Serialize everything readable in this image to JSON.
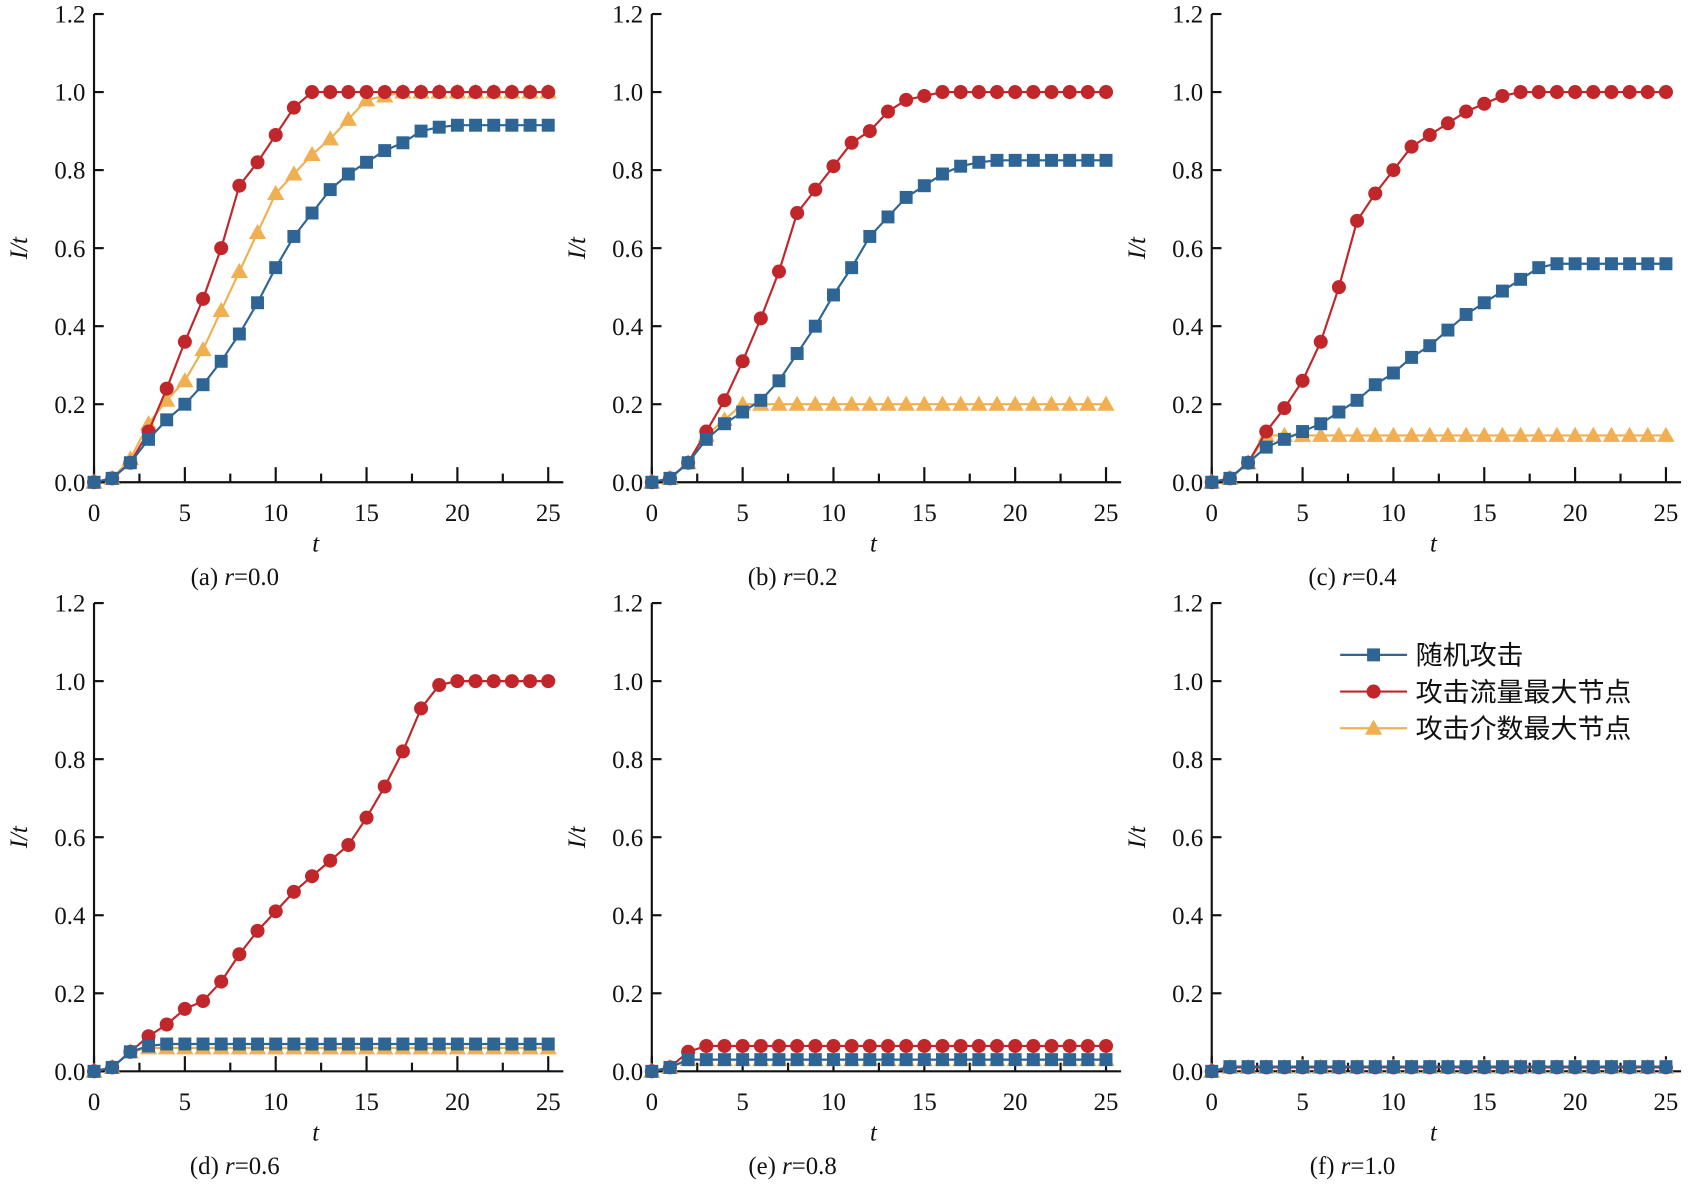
{
  "chart_data": {
    "type": "line",
    "xlabel": "t",
    "ylabel": "I/t",
    "xlim": [
      0,
      25
    ],
    "ylim": [
      0,
      1.2
    ],
    "xticks": [
      "0",
      "5",
      "10",
      "15",
      "20",
      "25"
    ],
    "yticks": [
      "0.0",
      "0.2",
      "0.4",
      "0.6",
      "0.8",
      "1.0",
      "1.2"
    ],
    "legend": {
      "placement": "top-right of panel f",
      "entries": [
        "随机攻击",
        "攻击流量最大节点",
        "攻击介数最大节点"
      ]
    },
    "colors": {
      "random": "#2e6595",
      "flow": "#c0262a",
      "betweenness": "#f0b052"
    },
    "x": [
      0,
      1,
      2,
      3,
      4,
      5,
      6,
      7,
      8,
      9,
      10,
      11,
      12,
      13,
      14,
      15,
      16,
      17,
      18,
      19,
      20,
      21,
      22,
      23,
      24,
      25
    ],
    "panels": [
      {
        "caption_prefix": "(a) ",
        "caption_r": "r",
        "caption_val": "=0.0",
        "series": [
          {
            "name": "随机攻击",
            "values": [
              0,
              0.01,
              0.05,
              0.11,
              0.16,
              0.2,
              0.25,
              0.31,
              0.38,
              0.46,
              0.55,
              0.63,
              0.69,
              0.75,
              0.79,
              0.82,
              0.85,
              0.87,
              0.9,
              0.91,
              0.915,
              0.915,
              0.915,
              0.915,
              0.915,
              0.915
            ]
          },
          {
            "name": "攻击流量最大节点",
            "values": [
              0,
              0.01,
              0.05,
              0.13,
              0.24,
              0.36,
              0.47,
              0.6,
              0.76,
              0.82,
              0.89,
              0.96,
              1,
              1,
              1,
              1,
              1,
              1,
              1,
              1,
              1,
              1,
              1,
              1,
              1,
              1
            ]
          },
          {
            "name": "攻击介数最大节点",
            "values": [
              0,
              0.01,
              0.06,
              0.15,
              0.21,
              0.26,
              0.34,
              0.44,
              0.54,
              0.64,
              0.74,
              0.79,
              0.84,
              0.88,
              0.93,
              0.98,
              0.99,
              1,
              1,
              1,
              1,
              1,
              1,
              1,
              1,
              1
            ]
          }
        ]
      },
      {
        "caption_prefix": "(b) ",
        "caption_r": "r",
        "caption_val": "=0.2",
        "series": [
          {
            "name": "随机攻击",
            "values": [
              0,
              0.01,
              0.05,
              0.11,
              0.15,
              0.18,
              0.21,
              0.26,
              0.33,
              0.4,
              0.48,
              0.55,
              0.63,
              0.68,
              0.73,
              0.76,
              0.79,
              0.81,
              0.82,
              0.825,
              0.825,
              0.825,
              0.825,
              0.825,
              0.825,
              0.825
            ]
          },
          {
            "name": "攻击流量最大节点",
            "values": [
              0,
              0.01,
              0.05,
              0.13,
              0.21,
              0.31,
              0.42,
              0.54,
              0.69,
              0.75,
              0.81,
              0.87,
              0.9,
              0.95,
              0.98,
              0.99,
              1,
              1,
              1,
              1,
              1,
              1,
              1,
              1,
              1,
              1
            ]
          },
          {
            "name": "攻击介数最大节点",
            "values": [
              0,
              0.01,
              0.05,
              0.12,
              0.16,
              0.2,
              0.2,
              0.2,
              0.2,
              0.2,
              0.2,
              0.2,
              0.2,
              0.2,
              0.2,
              0.2,
              0.2,
              0.2,
              0.2,
              0.2,
              0.2,
              0.2,
              0.2,
              0.2,
              0.2,
              0.2
            ]
          }
        ]
      },
      {
        "caption_prefix": "(c) ",
        "caption_r": "r",
        "caption_val": "=0.4",
        "series": [
          {
            "name": "随机攻击",
            "values": [
              0,
              0.01,
              0.05,
              0.09,
              0.11,
              0.13,
              0.15,
              0.18,
              0.21,
              0.25,
              0.28,
              0.32,
              0.35,
              0.39,
              0.43,
              0.46,
              0.49,
              0.52,
              0.55,
              0.56,
              0.56,
              0.56,
              0.56,
              0.56,
              0.56,
              0.56
            ]
          },
          {
            "name": "攻击流量最大节点",
            "values": [
              0,
              0.01,
              0.05,
              0.13,
              0.19,
              0.26,
              0.36,
              0.5,
              0.67,
              0.74,
              0.8,
              0.86,
              0.89,
              0.92,
              0.95,
              0.97,
              0.99,
              1,
              1,
              1,
              1,
              1,
              1,
              1,
              1,
              1
            ]
          },
          {
            "name": "攻击介数最大节点",
            "values": [
              0,
              0.01,
              0.05,
              0.12,
              0.12,
              0.12,
              0.12,
              0.12,
              0.12,
              0.12,
              0.12,
              0.12,
              0.12,
              0.12,
              0.12,
              0.12,
              0.12,
              0.12,
              0.12,
              0.12,
              0.12,
              0.12,
              0.12,
              0.12,
              0.12,
              0.12
            ]
          }
        ]
      },
      {
        "caption_prefix": "(d) ",
        "caption_r": "r",
        "caption_val": "=0.6",
        "series": [
          {
            "name": "随机攻击",
            "values": [
              0,
              0.01,
              0.05,
              0.065,
              0.07,
              0.07,
              0.07,
              0.07,
              0.07,
              0.07,
              0.07,
              0.07,
              0.07,
              0.07,
              0.07,
              0.07,
              0.07,
              0.07,
              0.07,
              0.07,
              0.07,
              0.07,
              0.07,
              0.07,
              0.07,
              0.07
            ]
          },
          {
            "name": "攻击流量最大节点",
            "values": [
              0,
              0.01,
              0.05,
              0.09,
              0.12,
              0.16,
              0.18,
              0.23,
              0.3,
              0.36,
              0.41,
              0.46,
              0.5,
              0.54,
              0.58,
              0.65,
              0.73,
              0.82,
              0.93,
              0.99,
              1,
              1,
              1,
              1,
              1,
              1
            ]
          },
          {
            "name": "攻击介数最大节点",
            "values": [
              0,
              0.01,
              0.05,
              0.06,
              0.06,
              0.06,
              0.06,
              0.06,
              0.06,
              0.06,
              0.06,
              0.06,
              0.06,
              0.06,
              0.06,
              0.06,
              0.06,
              0.06,
              0.06,
              0.06,
              0.06,
              0.06,
              0.06,
              0.06,
              0.06,
              0.06
            ]
          }
        ]
      },
      {
        "caption_prefix": "(e) ",
        "caption_r": "r",
        "caption_val": "=0.8",
        "series": [
          {
            "name": "随机攻击",
            "values": [
              0,
              0.01,
              0.03,
              0.03,
              0.03,
              0.03,
              0.03,
              0.03,
              0.03,
              0.03,
              0.03,
              0.03,
              0.03,
              0.03,
              0.03,
              0.03,
              0.03,
              0.03,
              0.03,
              0.03,
              0.03,
              0.03,
              0.03,
              0.03,
              0.03,
              0.03
            ]
          },
          {
            "name": "攻击流量最大节点",
            "values": [
              0,
              0.01,
              0.05,
              0.065,
              0.065,
              0.065,
              0.065,
              0.065,
              0.065,
              0.065,
              0.065,
              0.065,
              0.065,
              0.065,
              0.065,
              0.065,
              0.065,
              0.065,
              0.065,
              0.065,
              0.065,
              0.065,
              0.065,
              0.065,
              0.065,
              0.065
            ]
          },
          {
            "name": "攻击介数最大节点",
            "values": [
              0,
              0.01,
              0.03,
              0.03,
              0.03,
              0.03,
              0.03,
              0.03,
              0.03,
              0.03,
              0.03,
              0.03,
              0.03,
              0.03,
              0.03,
              0.03,
              0.03,
              0.03,
              0.03,
              0.03,
              0.03,
              0.03,
              0.03,
              0.03,
              0.03,
              0.03
            ]
          }
        ]
      },
      {
        "caption_prefix": "(f) ",
        "caption_r": "r",
        "caption_val": "=1.0",
        "series": [
          {
            "name": "随机攻击",
            "values": [
              0,
              0.012,
              0.012,
              0.012,
              0.012,
              0.012,
              0.012,
              0.012,
              0.012,
              0.012,
              0.012,
              0.012,
              0.012,
              0.012,
              0.012,
              0.012,
              0.012,
              0.012,
              0.012,
              0.012,
              0.012,
              0.012,
              0.012,
              0.012,
              0.012,
              0.012
            ]
          },
          {
            "name": "攻击流量最大节点",
            "values": [
              0,
              0.01,
              0.01,
              0.01,
              0.01,
              0.01,
              0.01,
              0.01,
              0.01,
              0.01,
              0.01,
              0.01,
              0.01,
              0.01,
              0.01,
              0.01,
              0.01,
              0.01,
              0.01,
              0.01,
              0.01,
              0.01,
              0.01,
              0.01,
              0.01,
              0.01
            ]
          },
          {
            "name": "攻击介数最大节点",
            "values": [
              0,
              0.01,
              0.01,
              0.01,
              0.01,
              0.01,
              0.01,
              0.01,
              0.01,
              0.01,
              0.01,
              0.01,
              0.01,
              0.01,
              0.01,
              0.01,
              0.01,
              0.01,
              0.01,
              0.01,
              0.01,
              0.01,
              0.01,
              0.01,
              0.01,
              0.01
            ]
          }
        ]
      }
    ]
  }
}
